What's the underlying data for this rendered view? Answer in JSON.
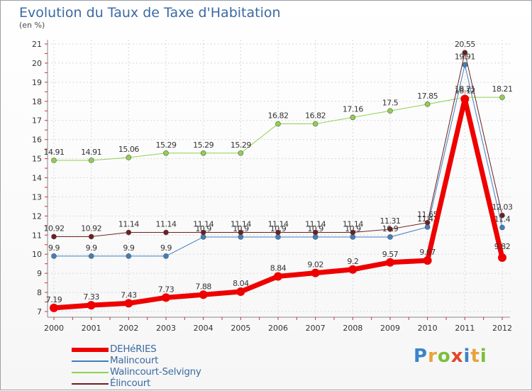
{
  "header": {
    "title": "Evolution du Taux de Taxe d'Habitation",
    "subtitle": "(en %)"
  },
  "chart_data": {
    "type": "line",
    "title": "Evolution du Taux de Taxe d'Habitation",
    "subtitle": "(en %)",
    "xlabel": "",
    "ylabel": "",
    "x": [
      "2000",
      "2001",
      "2002",
      "2003",
      "2004",
      "2005",
      "2006",
      "2007",
      "2008",
      "2009",
      "2010",
      "2011",
      "2012"
    ],
    "y_ticks": [
      7,
      8,
      9,
      10,
      11,
      12,
      13,
      14,
      15,
      16,
      17,
      18,
      19,
      20,
      21
    ],
    "ylim": [
      7,
      21
    ],
    "grid": true,
    "legend_position": "bottom-left",
    "series": [
      {
        "name": "Malincourt",
        "color": "#3d7fc1",
        "width": 1,
        "values": [
          9.9,
          9.9,
          9.9,
          9.9,
          10.9,
          10.9,
          10.9,
          10.9,
          10.9,
          10.9,
          11.42,
          19.91,
          11.4
        ],
        "labels": [
          "9.9",
          "9.9",
          "9.9",
          "9.9",
          "10.9",
          "10.9",
          "10.9",
          "10.9",
          "10.9",
          "10.9",
          "11.42",
          "19.91",
          "11.4"
        ]
      },
      {
        "name": "Walincourt-Selvigny",
        "color": "#8fd14f",
        "width": 1,
        "values": [
          14.91,
          14.91,
          15.06,
          15.29,
          15.29,
          15.29,
          16.82,
          16.82,
          17.16,
          17.5,
          17.85,
          18.21,
          18.21
        ],
        "labels": [
          "14.91",
          "14.91",
          "15.06",
          "15.29",
          "15.29",
          "15.29",
          "16.82",
          "16.82",
          "17.16",
          "17.5",
          "17.85",
          "18.21",
          "18.21"
        ]
      },
      {
        "name": "Élincourt",
        "color": "#6b1f1f",
        "width": 1,
        "values": [
          10.92,
          10.92,
          11.14,
          11.14,
          11.14,
          11.14,
          11.14,
          11.14,
          11.14,
          11.31,
          11.65,
          20.55,
          12.03
        ],
        "labels": [
          "10.92",
          "10.92",
          "11.14",
          "11.14",
          "11.14",
          "11.14",
          "11.14",
          "11.14",
          "11.14",
          "11.31",
          "11.65",
          "20.55",
          "12.03"
        ]
      },
      {
        "name": "DEHéRIES",
        "color": "#ee0000",
        "width": 7,
        "values": [
          7.19,
          7.33,
          7.43,
          7.73,
          7.88,
          8.04,
          8.84,
          9.02,
          9.2,
          9.57,
          9.67,
          18.12,
          9.82
        ],
        "labels": [
          "7.19",
          "7.33",
          "7.43",
          "7.73",
          "7.88",
          "8.04",
          "8.84",
          "9.02",
          "9.2",
          "9.57",
          "9.67",
          "18.12",
          "9.82"
        ]
      }
    ],
    "legend_order": [
      "DEHéRIES",
      "Malincourt",
      "Walincourt-Selvigny",
      "Élincourt"
    ]
  },
  "legend": {
    "items": [
      {
        "label": "DEHéRIES",
        "color": "#ee0000"
      },
      {
        "label": "Malincourt",
        "color": "#3d7fc1"
      },
      {
        "label": "Walincourt-Selvigny",
        "color": "#8fd14f"
      },
      {
        "label": "Élincourt",
        "color": "#6b1f1f"
      }
    ]
  },
  "logo": {
    "text": "Proxiti"
  }
}
